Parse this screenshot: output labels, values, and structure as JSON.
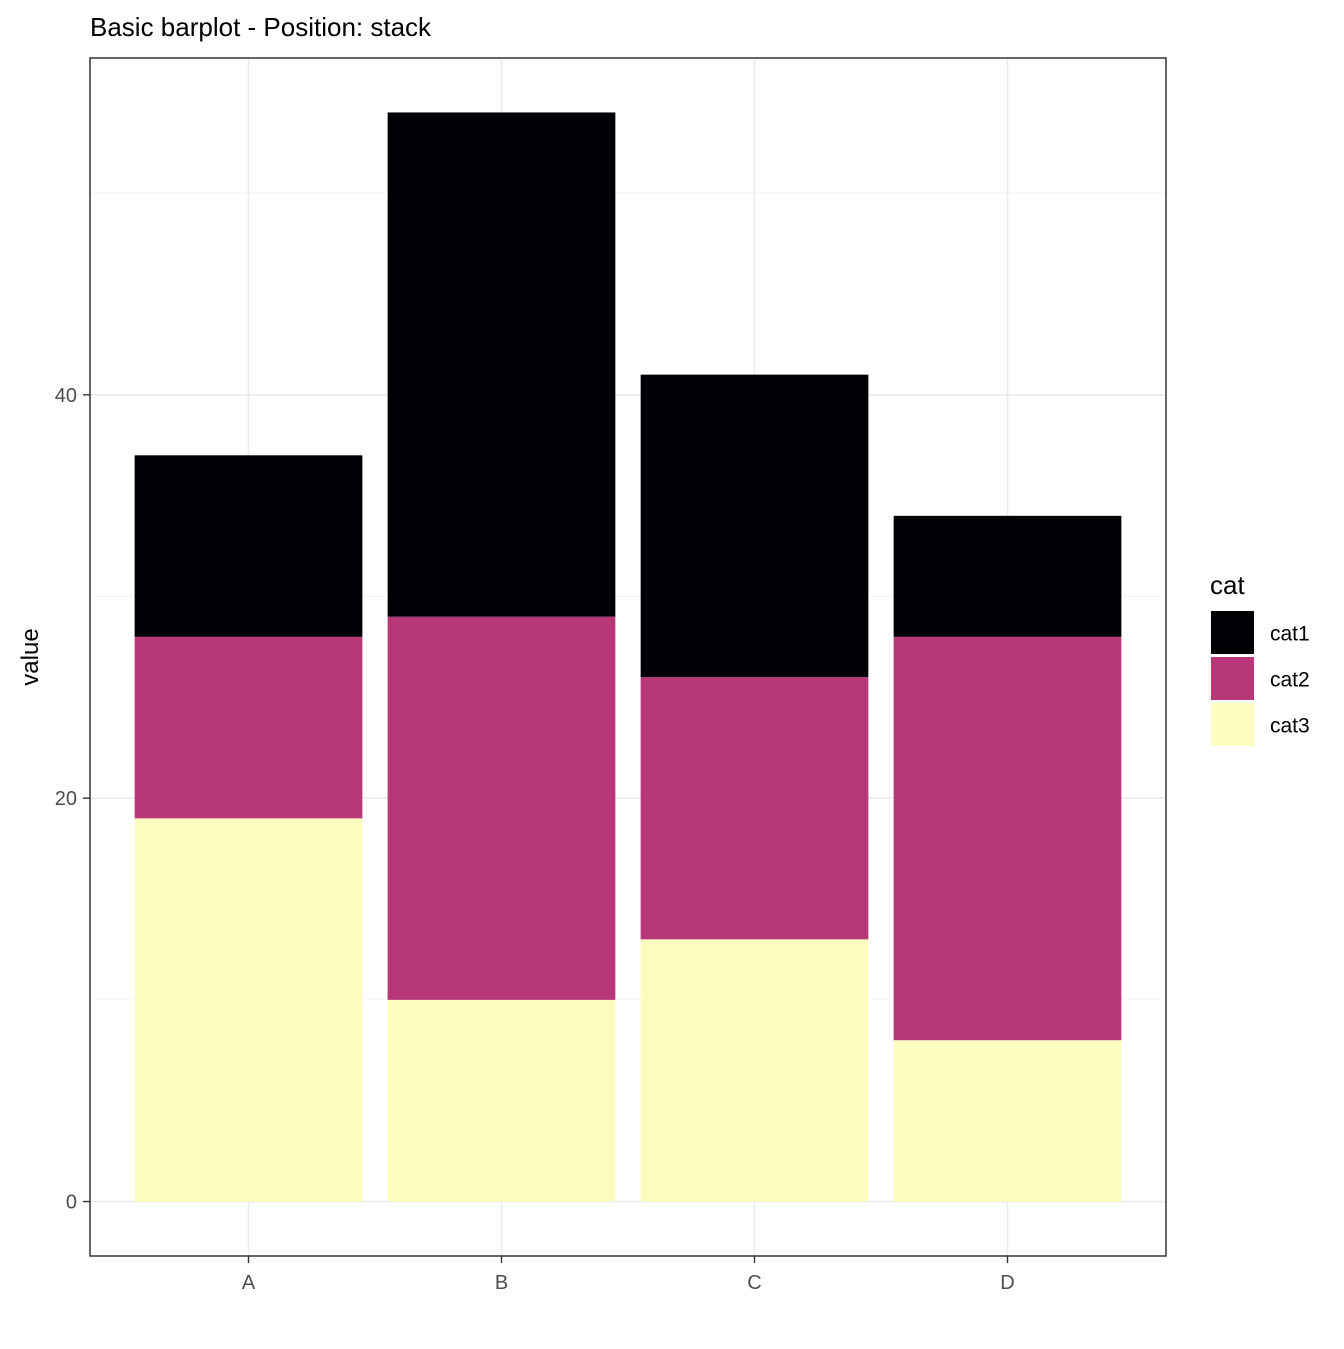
{
  "chart_data": {
    "type": "bar",
    "stacked": true,
    "title": "Basic barplot - Position: stack",
    "xlabel": "",
    "ylabel": "value",
    "categories": [
      "A",
      "B",
      "C",
      "D"
    ],
    "series": [
      {
        "name": "cat1",
        "values": [
          9,
          25,
          15,
          6
        ],
        "color": "#000004"
      },
      {
        "name": "cat2",
        "values": [
          9,
          19,
          13,
          20
        ],
        "color": "#b73779"
      },
      {
        "name": "cat3",
        "values": [
          19,
          10,
          13,
          8
        ],
        "color": "#fcfdbf"
      }
    ],
    "stack_order_bottom_to_top": [
      "cat3",
      "cat2",
      "cat1"
    ],
    "y_ticks": [
      0,
      20,
      40
    ],
    "y_tick_labels": [
      "0",
      "20",
      "40"
    ],
    "ylim": [
      -2.7,
      56.7
    ],
    "grid": true,
    "legend": {
      "title": "cat",
      "position": "right",
      "entries": [
        "cat1",
        "cat2",
        "cat3"
      ]
    }
  }
}
